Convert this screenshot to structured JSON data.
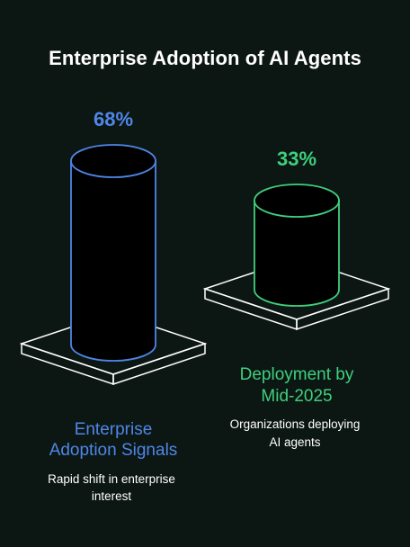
{
  "title": "Enterprise Adoption of AI Agents",
  "colors": {
    "background": "#0c1713",
    "series_1": "#4f86e8",
    "series_2": "#3fcf7e",
    "outline": "#ffffff"
  },
  "chart_data": {
    "type": "bar",
    "style": "3d-cylinder",
    "categories": [
      {
        "label_lines": [
          "Enterprise",
          "Adoption Signals"
        ],
        "description_lines": [
          "Rapid shift in enterprise",
          "interest"
        ]
      },
      {
        "label_lines": [
          "Deployment by",
          "Mid-2025"
        ],
        "description_lines": [
          "Organizations deploying",
          "AI agents"
        ]
      }
    ],
    "values": [
      68,
      33
    ],
    "value_labels": [
      "68%",
      "33%"
    ],
    "unit": "%",
    "ylim": [
      0,
      100
    ],
    "grid": false,
    "legend": "none"
  }
}
